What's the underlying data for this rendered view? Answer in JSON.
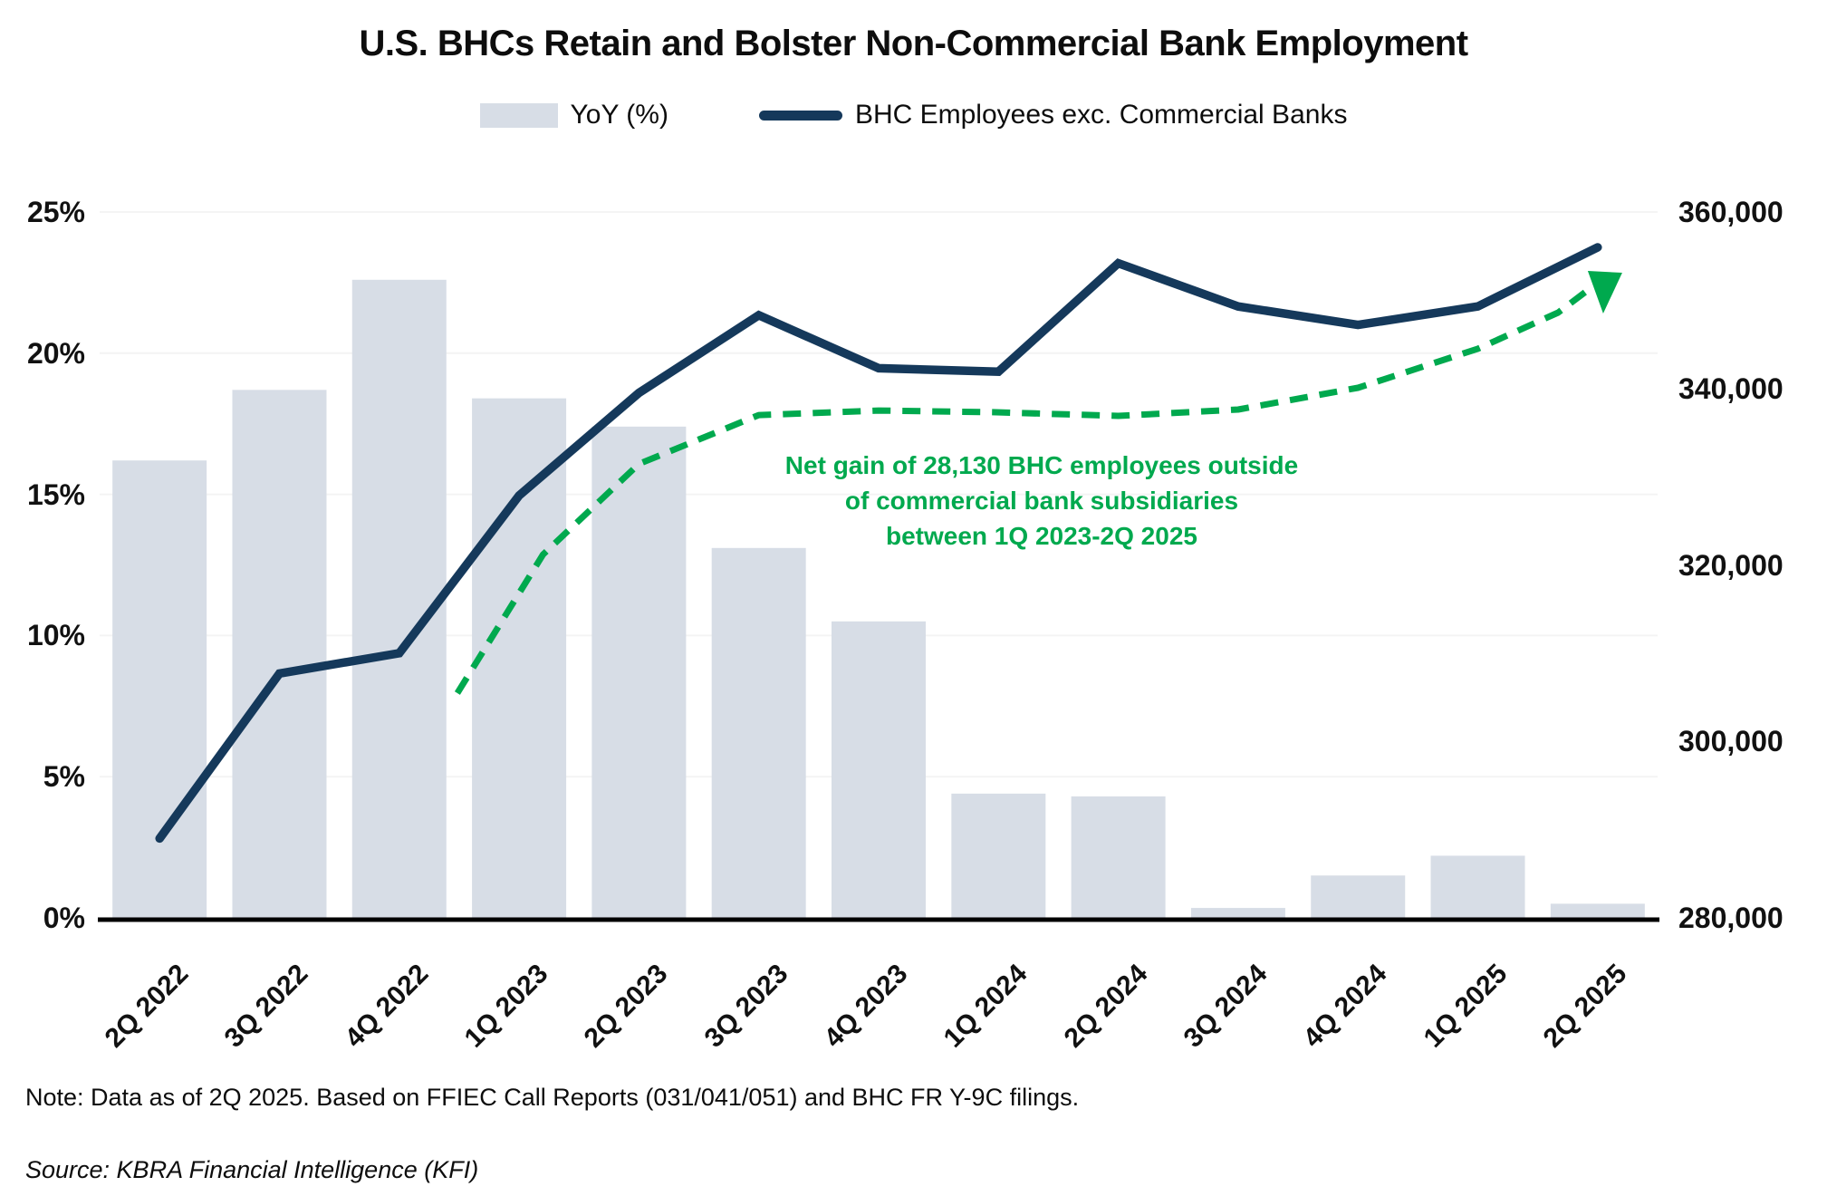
{
  "title": "U.S. BHCs Retain and Bolster Non-Commercial Bank Employment",
  "legend": [
    {
      "label": "YoY (%)",
      "swatch": "bar"
    },
    {
      "label": "BHC Employees exc. Commercial Banks",
      "swatch": "line"
    }
  ],
  "colors": {
    "bar": "#D7DDE6",
    "line": "#15395B",
    "green": "#00A94E",
    "grid": "#F4F4F4",
    "axis": "#000000",
    "text": "#0D0D0D"
  },
  "chart_data": {
    "type": "bar+line combo",
    "categories": [
      "2Q 2022",
      "3Q 2022",
      "4Q 2022",
      "1Q 2023",
      "2Q 2023",
      "3Q 2023",
      "4Q 2023",
      "1Q 2024",
      "2Q 2024",
      "3Q 2024",
      "4Q 2024",
      "1Q 2025",
      "2Q 2025"
    ],
    "series": [
      {
        "name": "YoY (%)",
        "type": "bar",
        "axis": "left",
        "values": [
          16.2,
          18.7,
          22.6,
          18.4,
          17.4,
          13.1,
          10.5,
          4.4,
          4.3,
          0.35,
          1.5,
          2.2,
          0.5
        ]
      },
      {
        "name": "BHC Employees exc. Commercial Banks",
        "type": "line",
        "axis": "right",
        "values": [
          289000,
          307700,
          310000,
          327870,
          339500,
          348300,
          342300,
          341900,
          354200,
          349300,
          347200,
          349300,
          356000
        ]
      }
    ],
    "left_axis": {
      "min": 0,
      "max": 25,
      "step": 5,
      "ticks": [
        "0%",
        "5%",
        "10%",
        "15%",
        "20%",
        "25%"
      ]
    },
    "right_axis": {
      "min": 280000,
      "max": 360000,
      "step": 20000,
      "ticks": [
        "280,000",
        "300,000",
        "320,000",
        "340,000",
        "360,000"
      ]
    },
    "grid": "horizontal, very light",
    "legend_position": "top center",
    "trend_arrow": {
      "style": "green dashed curved arrow",
      "points_idx_value": [
        [
          2.485,
          305470
        ],
        [
          3.2,
          321180
        ],
        [
          4.0,
          331450
        ],
        [
          5.0,
          336990
        ],
        [
          6.0,
          337500
        ],
        [
          6.98,
          337300
        ],
        [
          8.0,
          336890
        ],
        [
          9.0,
          337610
        ],
        [
          10.0,
          340080
        ],
        [
          11.0,
          344500
        ],
        [
          11.67,
          348600
        ],
        [
          11.94,
          351370
        ]
      ]
    }
  },
  "annotation": {
    "lines": [
      "Net gain of 28,130 BHC employees outside",
      "of commercial bank subsidiaries",
      "between 1Q 2023-2Q 2025"
    ]
  },
  "note": "Note: Data as of 2Q 2025. Based on FFIEC Call Reports (031/041/051) and BHC FR Y-9C filings.",
  "source": "Source: KBRA Financial Intelligence (KFI)"
}
